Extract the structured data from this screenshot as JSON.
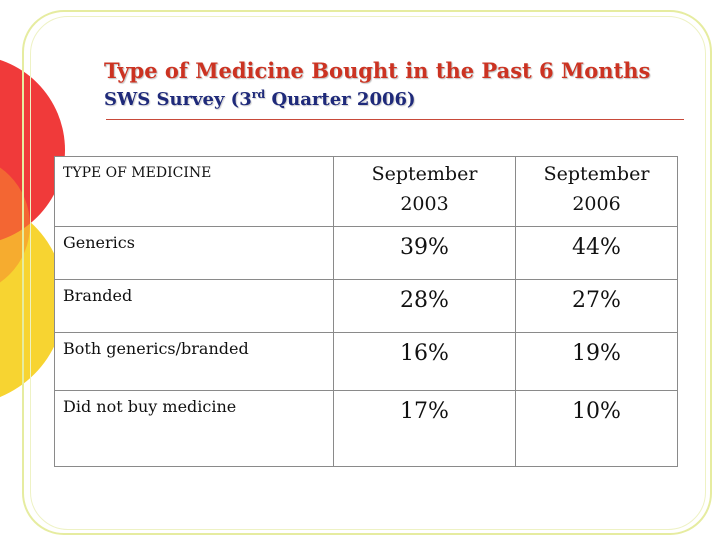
{
  "slide": {
    "title": "Type of Medicine Bought in the Past 6 Months",
    "subtitle_main": "SWS Survey (3",
    "subtitle_sup": "rd",
    "subtitle_rest": " Quarter 2006)"
  },
  "table": {
    "headers": {
      "type": "TYPE OF MEDICINE",
      "col1_line1": "September",
      "col1_line2": "2003",
      "col2_line1": "September",
      "col2_line2": "2006"
    },
    "rows": [
      {
        "label": "Generics",
        "sep2003": "39%",
        "sep2006": "44%"
      },
      {
        "label": "Branded",
        "sep2003": "28%",
        "sep2006": "27%"
      },
      {
        "label": "Both generics/branded",
        "sep2003": "16%",
        "sep2006": "19%"
      },
      {
        "label": "Did not buy medicine",
        "sep2003": "17%",
        "sep2006": "10%"
      }
    ]
  },
  "colors": {
    "title": "#cc3322",
    "subtitle": "#1f2a7a",
    "decor_red": "#f03a3a",
    "decor_yellow": "#f7d431",
    "frame": "#e6eca0"
  }
}
